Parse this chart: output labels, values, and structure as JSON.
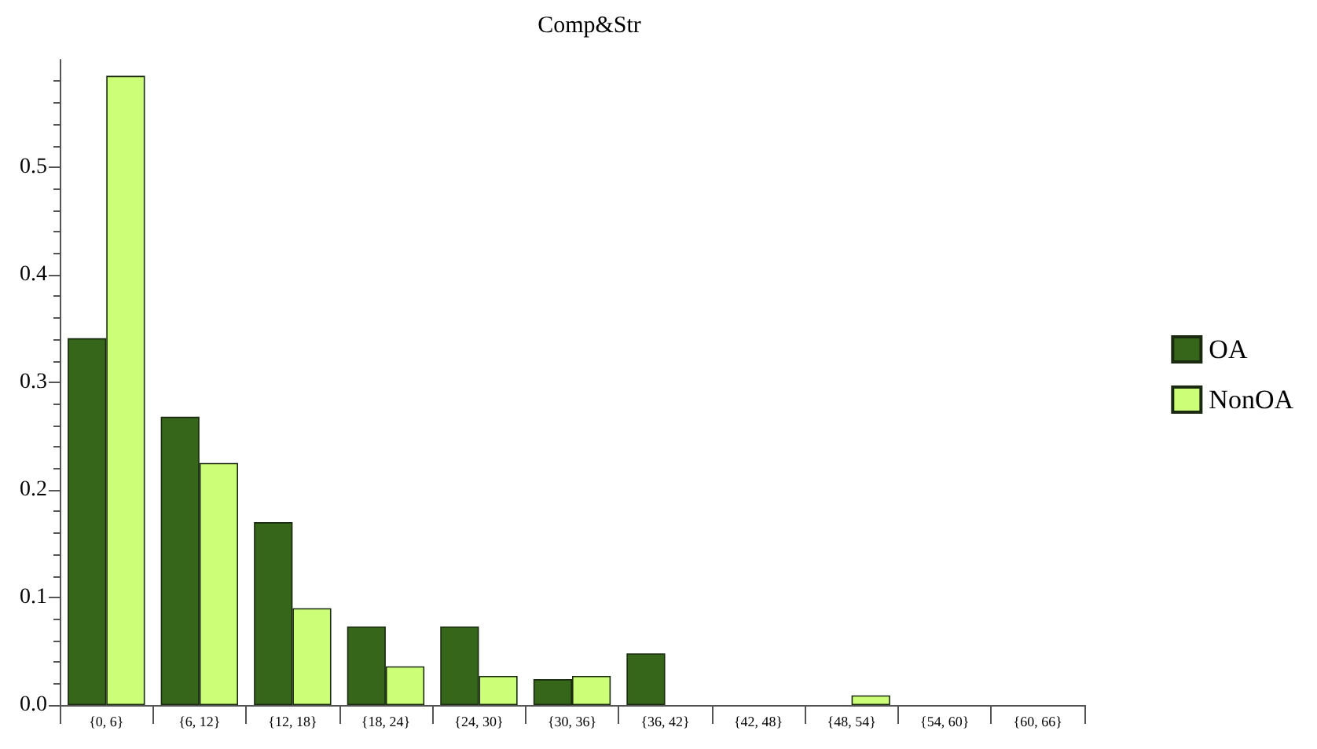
{
  "chart_data": {
    "type": "bar",
    "title": "Comp&Str",
    "categories": [
      "{0, 6}",
      "{6, 12}",
      "{12, 18}",
      "{18, 24}",
      "{24, 30}",
      "{30, 36}",
      "{36, 42}",
      "{42, 48}",
      "{48, 54}",
      "{54, 60}",
      "{60, 66}"
    ],
    "series": [
      {
        "name": "OA",
        "color": "#356619",
        "values": [
          0.341,
          0.268,
          0.17,
          0.073,
          0.073,
          0.024,
          0.048,
          0,
          0,
          0,
          0
        ]
      },
      {
        "name": "NonOA",
        "color": "#ccff77",
        "values": [
          0.585,
          0.225,
          0.09,
          0.036,
          0.027,
          0.027,
          0,
          0,
          0.009,
          0,
          0
        ]
      }
    ],
    "ylim": [
      0,
      0.6
    ],
    "yticks": [
      {
        "value": 0,
        "label": "0.0"
      },
      0.1,
      0.2,
      0.3,
      0.4,
      0.5
    ],
    "grid": false,
    "legend": "right"
  }
}
